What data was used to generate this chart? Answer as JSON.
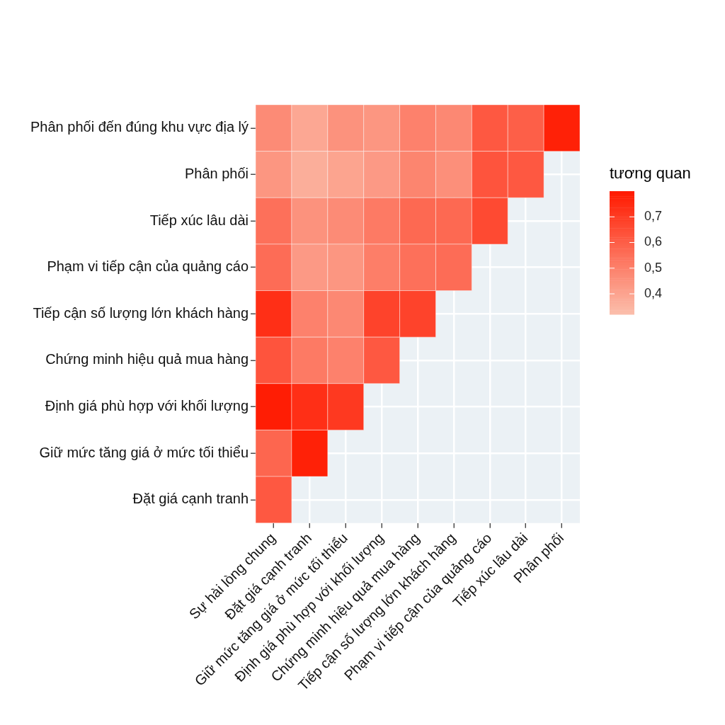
{
  "chart_data": {
    "type": "heatmap",
    "clabel": "tương quan",
    "categories": [
      "Sự hài lòng chung",
      "Đặt giá cạnh tranh",
      "Giữ mức tăng giá ở mức tối thiểu",
      "Định giá phù hợp với khối lượng",
      "Chứng minh hiệu quả mua hàng",
      "Tiếp cận số lượng lớn khách hàng",
      "Phạm vi tiếp cận của quảng cáo",
      "Tiếp xúc lâu dài",
      "Phân phối"
    ],
    "y_categories": [
      "Phân phối đến đúng khu vực địa lý",
      "Phân phối",
      "Tiếp xúc lâu dài",
      "Phạm vi tiếp cận của quảng cáo",
      "Tiếp cận số lượng lớn khách hàng",
      "Chứng minh hiệu quả mua hàng",
      "Định giá phù hợp với khối lượng",
      "Giữ mức tăng giá ở mức tối thiểu",
      "Đặt giá cạnh tranh"
    ],
    "cells": [
      [
        0.47,
        0.39,
        0.45,
        0.44,
        0.5,
        0.48,
        0.62,
        0.6,
        0.78
      ],
      [
        0.44,
        0.37,
        0.4,
        0.43,
        0.49,
        0.46,
        0.63,
        0.62,
        null
      ],
      [
        0.55,
        0.45,
        0.47,
        0.52,
        0.57,
        0.57,
        0.66,
        null,
        null
      ],
      [
        0.56,
        0.43,
        0.44,
        0.51,
        0.55,
        0.56,
        null,
        null,
        null
      ],
      [
        0.74,
        0.5,
        0.48,
        0.68,
        0.68,
        null,
        null,
        null,
        null
      ],
      [
        0.63,
        0.52,
        0.5,
        0.62,
        null,
        null,
        null,
        null,
        null
      ],
      [
        0.79,
        0.74,
        0.71,
        null,
        null,
        null,
        null,
        null,
        null
      ],
      [
        0.58,
        0.78,
        null,
        null,
        null,
        null,
        null,
        null,
        null
      ],
      [
        0.62,
        null,
        null,
        null,
        null,
        null,
        null,
        null,
        null
      ]
    ],
    "clim": [
      0.32,
      0.8
    ],
    "cticks": [
      {
        "value": 0.4,
        "label": "0,4"
      },
      {
        "value": 0.5,
        "label": "0,5"
      },
      {
        "value": 0.6,
        "label": "0,6"
      },
      {
        "value": 0.7,
        "label": "0,7"
      }
    ],
    "colors": [
      "#fbbfac",
      "#ff1a00"
    ],
    "grid": true
  }
}
